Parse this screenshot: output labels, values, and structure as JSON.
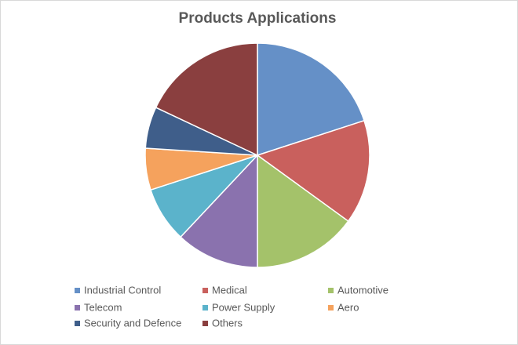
{
  "chart_data": {
    "type": "pie",
    "title": "Products Applications",
    "categories": [
      "Industrial Control",
      "Medical",
      "Automotive",
      "Telecom",
      "Power Supply",
      "Aero",
      "Security and Defence",
      "Others"
    ],
    "values": [
      20,
      15,
      15,
      12,
      8,
      6,
      6,
      18
    ],
    "colors": [
      "#6590c7",
      "#c9605d",
      "#a4c26a",
      "#8a72ae",
      "#5bb3cb",
      "#f5a25d",
      "#3f5e8a",
      "#8a3f3f"
    ],
    "legend": "bottom"
  }
}
